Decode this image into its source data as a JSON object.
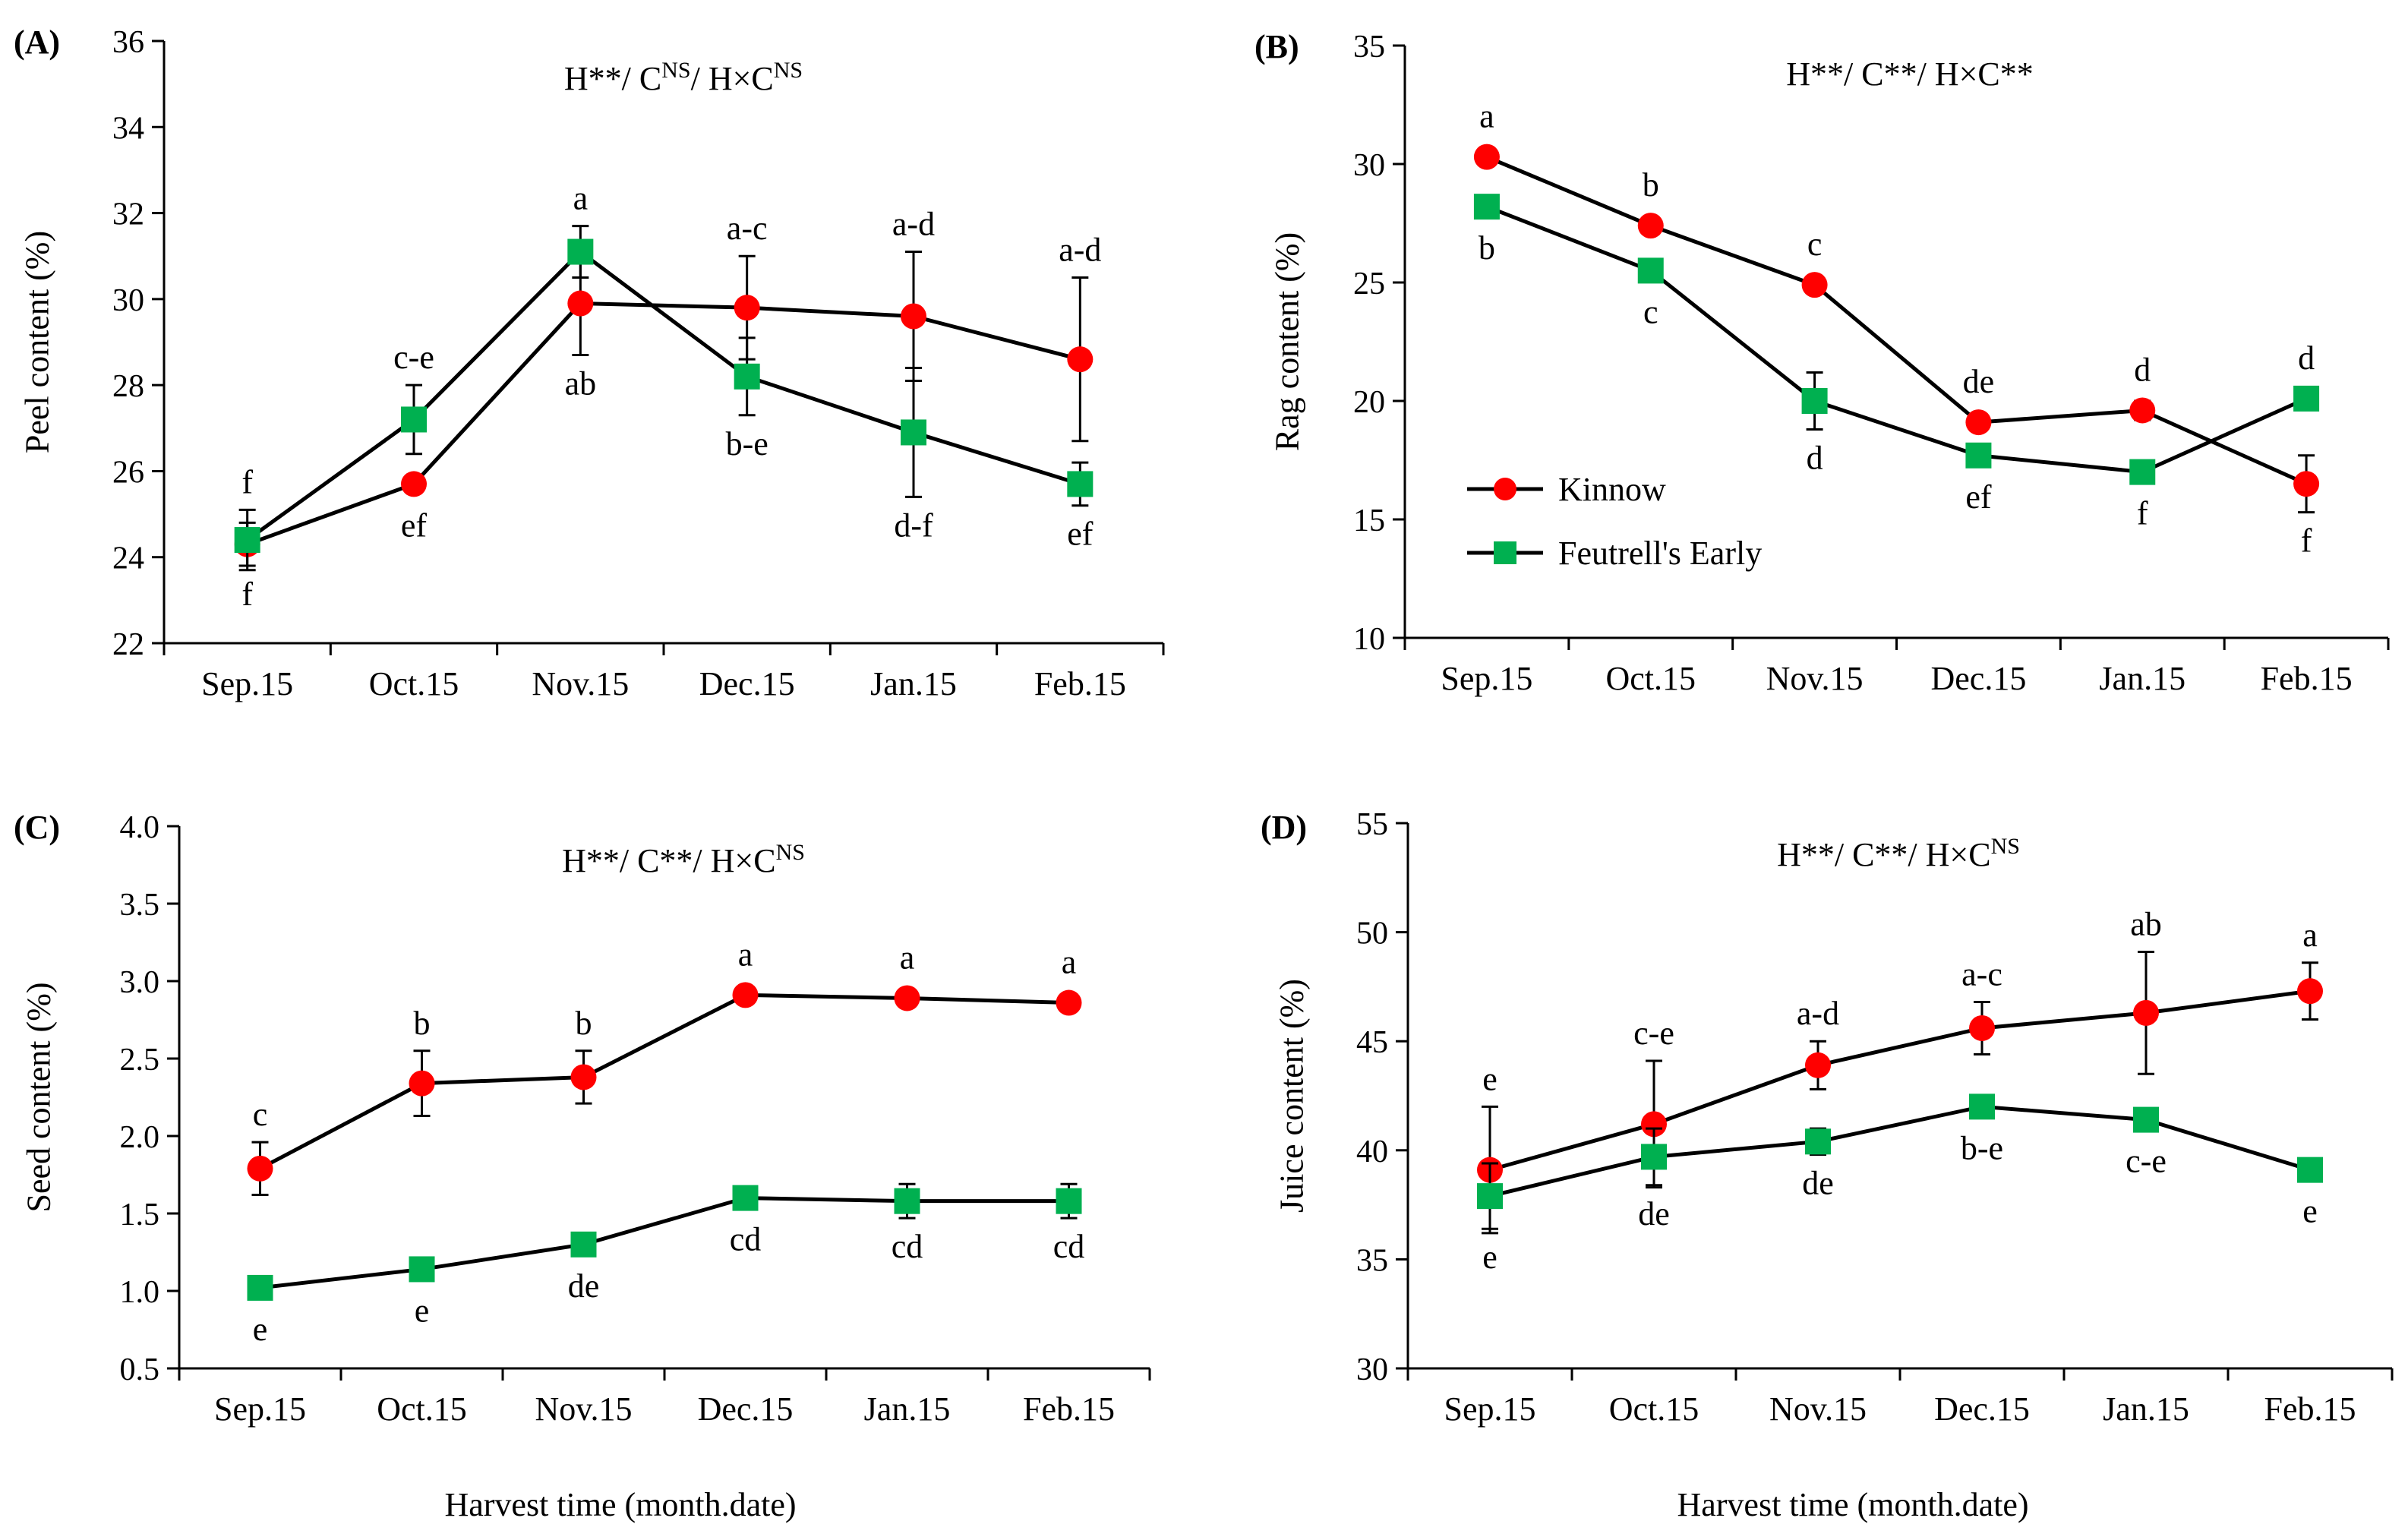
{
  "figure": {
    "xlabel_bottom": "Harvest time (month.date)",
    "legend": [
      {
        "name": "Kinnow",
        "color": "#ff0000",
        "marker": "circle"
      },
      {
        "name": "Feutrell's Early",
        "color": "#00b050",
        "marker": "square"
      }
    ]
  },
  "chart_data": [
    {
      "panel": "(A)",
      "type": "line",
      "title_parts": [
        {
          "t": "H**/ C"
        },
        {
          "t": "NS",
          "sup": true
        },
        {
          "t": "/ H×C"
        },
        {
          "t": "NS",
          "sup": true
        }
      ],
      "ylabel": "Peel content (%)",
      "ylim": [
        22,
        36
      ],
      "yticks": [
        22,
        24,
        26,
        28,
        30,
        32,
        34,
        36
      ],
      "ytick_labels": [
        "22",
        "24",
        "26",
        "28",
        "30",
        "32",
        "34",
        "36"
      ],
      "categories": [
        "Sep.15",
        "Oct.15",
        "Nov.15",
        "Dec.15",
        "Jan.15",
        "Feb.15"
      ],
      "series": [
        {
          "name": "Kinnow",
          "values": [
            24.3,
            25.7,
            29.9,
            29.8,
            29.6,
            28.6
          ],
          "err": [
            0.5,
            0,
            1.2,
            1.2,
            1.5,
            1.9
          ],
          "letters": [
            "f",
            "ef",
            "ab",
            "a-c",
            "a-d",
            "a-d"
          ],
          "letter_pos": [
            "below",
            "below",
            "below",
            "above",
            "above",
            "above"
          ]
        },
        {
          "name": "Feutrell's Early",
          "values": [
            24.4,
            27.2,
            31.1,
            28.2,
            26.9,
            25.7
          ],
          "err": [
            0.7,
            0.8,
            0.6,
            0.9,
            1.5,
            0.5
          ],
          "letters": [
            "f",
            "c-e",
            "a",
            "b-e",
            "d-f",
            "ef"
          ],
          "letter_pos": [
            "above",
            "above",
            "above",
            "below",
            "below",
            "below"
          ]
        }
      ]
    },
    {
      "panel": "(B)",
      "type": "line",
      "title_parts": [
        {
          "t": "H**/ C**/ H×C**"
        }
      ],
      "ylabel": "Rag content (%)",
      "ylim": [
        10,
        35
      ],
      "yticks": [
        10,
        15,
        20,
        25,
        30,
        35
      ],
      "ytick_labels": [
        "10",
        "15",
        "20",
        "25",
        "30",
        "35"
      ],
      "categories": [
        "Sep.15",
        "Oct.15",
        "Nov.15",
        "Dec.15",
        "Jan.15",
        "Feb.15"
      ],
      "show_legend": true,
      "series": [
        {
          "name": "Kinnow",
          "values": [
            30.3,
            27.4,
            24.9,
            19.1,
            19.6,
            16.5
          ],
          "err": [
            0,
            0,
            0,
            0,
            0.4,
            1.2
          ],
          "letters": [
            "a",
            "b",
            "c",
            "de",
            "d",
            "f"
          ],
          "letter_pos": [
            "above",
            "above",
            "above",
            "above",
            "above",
            "below"
          ]
        },
        {
          "name": "Feutrell's Early",
          "values": [
            28.2,
            25.5,
            20.0,
            17.7,
            17.0,
            20.1
          ],
          "err": [
            0,
            0,
            1.2,
            0,
            0,
            0
          ],
          "letters": [
            "b",
            "c",
            "d",
            "ef",
            "f",
            "d"
          ],
          "letter_pos": [
            "below",
            "below",
            "below",
            "below",
            "below",
            "above"
          ]
        }
      ]
    },
    {
      "panel": "(C)",
      "type": "line",
      "title_parts": [
        {
          "t": "H**/ C**/ H×C"
        },
        {
          "t": "NS",
          "sup": true
        }
      ],
      "ylabel": "Seed content (%)",
      "ylim": [
        0.5,
        4.0
      ],
      "yticks": [
        0.5,
        1.0,
        1.5,
        2.0,
        2.5,
        3.0,
        3.5,
        4.0
      ],
      "ytick_labels": [
        "0.5",
        "1.0",
        "1.5",
        "2.0",
        "2.5",
        "3.0",
        "3.5",
        "4.0"
      ],
      "categories": [
        "Sep.15",
        "Oct.15",
        "Nov.15",
        "Dec.15",
        "Jan.15",
        "Feb.15"
      ],
      "series": [
        {
          "name": "Kinnow",
          "values": [
            1.79,
            2.34,
            2.38,
            2.91,
            2.89,
            2.86
          ],
          "err": [
            0.17,
            0.21,
            0.17,
            0,
            0,
            0
          ],
          "letters": [
            "c",
            "b",
            "b",
            "a",
            "a",
            "a"
          ],
          "letter_pos": [
            "above",
            "above",
            "above",
            "above",
            "above",
            "above"
          ]
        },
        {
          "name": "Feutrell's Early",
          "values": [
            1.02,
            1.14,
            1.3,
            1.6,
            1.58,
            1.58
          ],
          "err": [
            0,
            0,
            0,
            0,
            0.11,
            0.11
          ],
          "letters": [
            "e",
            "e",
            "de",
            "cd",
            "cd",
            "cd"
          ],
          "letter_pos": [
            "below",
            "below",
            "below",
            "below",
            "below",
            "below"
          ]
        }
      ]
    },
    {
      "panel": "(D)",
      "type": "line",
      "title_parts": [
        {
          "t": "H**/ C**/ H×C"
        },
        {
          "t": "NS",
          "sup": true
        }
      ],
      "ylabel": "Juice content (%)",
      "ylim": [
        30,
        55
      ],
      "yticks": [
        30,
        35,
        40,
        45,
        50,
        55
      ],
      "ytick_labels": [
        "30",
        "35",
        "40",
        "45",
        "50",
        "55"
      ],
      "categories": [
        "Sep.15",
        "Oct.15",
        "Nov.15",
        "Dec.15",
        "Jan.15",
        "Feb.15"
      ],
      "series": [
        {
          "name": "Kinnow",
          "values": [
            39.1,
            41.2,
            43.9,
            45.6,
            46.3,
            47.3
          ],
          "err": [
            2.9,
            2.9,
            1.1,
            1.2,
            2.8,
            1.3
          ],
          "letters": [
            "e",
            "c-e",
            "a-d",
            "a-c",
            "ab",
            "a"
          ],
          "letter_pos": [
            "above",
            "above",
            "above",
            "above",
            "above",
            "above"
          ]
        },
        {
          "name": "Feutrell's Early",
          "values": [
            37.9,
            39.7,
            40.4,
            42.0,
            41.4,
            39.1
          ],
          "err": [
            1.5,
            1.3,
            0.6,
            0,
            0,
            0
          ],
          "letters": [
            "e",
            "de",
            "de",
            "b-e",
            "c-e",
            "e"
          ],
          "letter_pos": [
            "below",
            "below",
            "below",
            "below",
            "below",
            "below"
          ]
        }
      ]
    }
  ]
}
